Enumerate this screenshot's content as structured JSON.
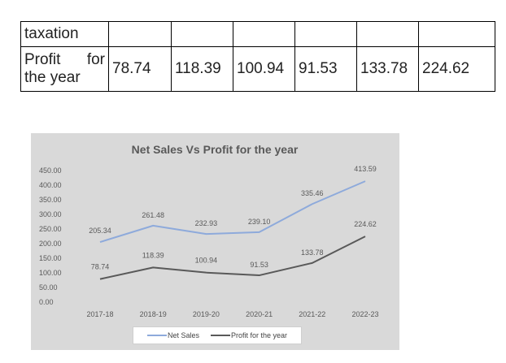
{
  "table": {
    "rows": [
      {
        "label": "taxation",
        "values": [
          "",
          "",
          "",
          "",
          "",
          ""
        ]
      },
      {
        "label_line1_a": "Profit",
        "label_line1_b": "for",
        "label_line2": "the year",
        "values": [
          "78.74",
          "118.39",
          "100.94",
          "91.53",
          "133.78",
          "224.62"
        ]
      }
    ]
  },
  "chart_data": {
    "type": "line",
    "title": "Net Sales Vs Profit for the year",
    "categories": [
      "2017-18",
      "2018-19",
      "2019-20",
      "2020-21",
      "2021-22",
      "2022-23"
    ],
    "y_ticks": [
      "450.00",
      "400.00",
      "350.00",
      "300.00",
      "250.00",
      "200.00",
      "150.00",
      "100.00",
      "50.00",
      "0.00"
    ],
    "ylim": [
      0,
      450
    ],
    "grid": false,
    "legend_position": "bottom",
    "series": [
      {
        "name": "Net Sales",
        "color": "#8eaadb",
        "values": [
          205.34,
          261.48,
          232.93,
          239.1,
          335.46,
          413.59
        ],
        "labels": [
          "205.34",
          "261.48",
          "232.93",
          "239.10",
          "335.46",
          "413.59"
        ]
      },
      {
        "name": "Profit for the year",
        "color": "#595959",
        "values": [
          78.74,
          118.39,
          100.94,
          91.53,
          133.78,
          224.62
        ],
        "labels": [
          "78.74",
          "118.39",
          "100.94",
          "91.53",
          "133.78",
          "224.62"
        ]
      }
    ]
  }
}
